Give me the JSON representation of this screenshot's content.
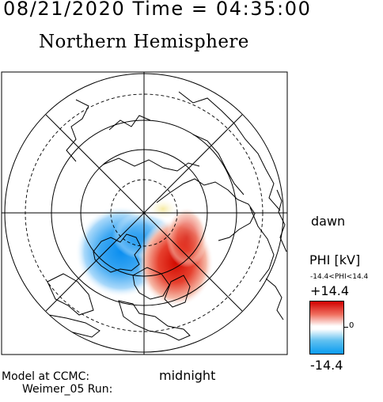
{
  "header": {
    "datetime": "08/21/2020 Time = 04:35:00",
    "title": "Northern Hemisphere"
  },
  "labels": {
    "dawn": "dawn",
    "midnight": "midnight",
    "model_line1": "Model at CCMC:",
    "model_line2": "Weimer_05 Run:"
  },
  "colorbar": {
    "label": "PHI [kV]",
    "range_text": "-14.4<PHI<14.4",
    "max": "+14.4",
    "min": "-14.4",
    "zero": "0",
    "max_color": "#d10000",
    "min_color": "#0a9cf0"
  },
  "map": {
    "projection": "polar",
    "pole": "north",
    "potential_min_kv": -14.4,
    "potential_max_kv": 14.4,
    "negative_cell_color": "#3aa0ef",
    "positive_cell_color": "#e02a1e"
  }
}
